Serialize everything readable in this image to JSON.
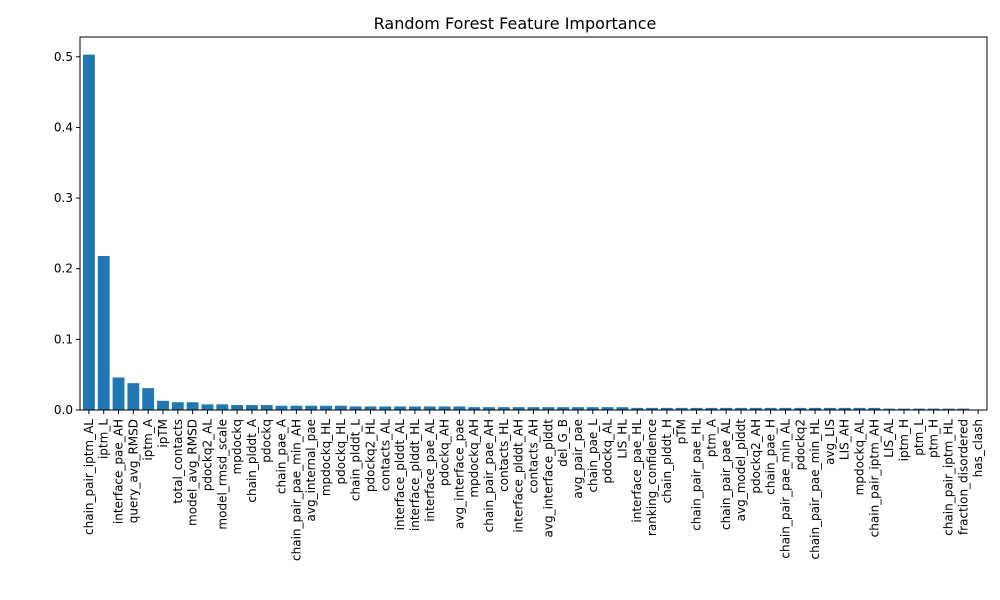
{
  "chart_data": {
    "type": "bar",
    "title": "Random Forest Feature Importance",
    "xlabel": "",
    "ylabel": "",
    "ylim": [
      0,
      0.528
    ],
    "yticks": [
      0.0,
      0.1,
      0.2,
      0.3,
      0.4,
      0.5
    ],
    "ytick_labels": [
      "0.0",
      "0.1",
      "0.2",
      "0.3",
      "0.4",
      "0.5"
    ],
    "grid": false,
    "bar_color": "#1f77b4",
    "categories": [
      "chain_pair_iptm_AL",
      "iptm_L",
      "interface_pae_AH",
      "query_avg_RMSD",
      "iptm_A",
      "ipTM",
      "total_contacts",
      "model_avg_RMSD",
      "pdockq2_AL",
      "model_rmsd_scale",
      "mpdockq",
      "chain_plddt_A",
      "pdockq",
      "chain_pae_A",
      "chain_pair_pae_min_AH",
      "avg_internal_pae",
      "mpdockq_HL",
      "pdockq_HL",
      "chain_plddt_L",
      "pdockq2_HL",
      "contacts_AL",
      "interface_plddt_AL",
      "interface_plddt_HL",
      "interface_pae_AL",
      "pdockq_AH",
      "avg_interface_pae",
      "mpdockq_AH",
      "chain_pair_pae_AH",
      "contacts_HL",
      "interface_plddt_AH",
      "contacts_AH",
      "avg_interface_plddt",
      "del_G_B",
      "avg_pair_pae",
      "chain_pae_L",
      "pdockq_AL",
      "LIS_HL",
      "interface_pae_HL",
      "ranking_confidence",
      "chain_plddt_H",
      "pTM",
      "chain_pair_pae_HL",
      "ptm_A",
      "chain_pair_pae_AL",
      "avg_model_plddt",
      "pdockq2_AH",
      "chain_pae_H",
      "chain_pair_pae_min_AL",
      "pdockq2",
      "chain_pair_pae_min_HL",
      "avg_LIS",
      "LIS_AH",
      "mpdockq_AL",
      "chain_pair_iptm_AH",
      "LIS_AL",
      "iptm_H",
      "ptm_L",
      "ptm_H",
      "chain_pair_iptm_HL",
      "fraction_disordered",
      "has_clash"
    ],
    "values": [
      0.503,
      0.218,
      0.046,
      0.038,
      0.031,
      0.013,
      0.011,
      0.011,
      0.008,
      0.008,
      0.007,
      0.007,
      0.007,
      0.006,
      0.006,
      0.006,
      0.006,
      0.006,
      0.005,
      0.005,
      0.005,
      0.005,
      0.005,
      0.005,
      0.005,
      0.005,
      0.004,
      0.004,
      0.004,
      0.004,
      0.004,
      0.004,
      0.004,
      0.004,
      0.004,
      0.004,
      0.004,
      0.003,
      0.003,
      0.003,
      0.003,
      0.003,
      0.003,
      0.003,
      0.003,
      0.003,
      0.003,
      0.003,
      0.003,
      0.003,
      0.003,
      0.003,
      0.003,
      0.003,
      0.002,
      0.002,
      0.002,
      0.002,
      0.002,
      0.002,
      0.0
    ]
  }
}
